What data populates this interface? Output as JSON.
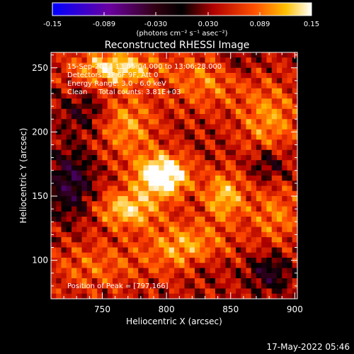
{
  "chart_data": {
    "type": "heatmap",
    "title": "Reconstructed RHESSI Image",
    "xlabel": "Heliocentric X (arcsec)",
    "ylabel": "Heliocentric Y (arcsec)",
    "xlim": [
      710,
      902
    ],
    "ylim": [
      70,
      262
    ],
    "x_ticks": [
      750,
      800,
      850,
      900
    ],
    "y_ticks": [
      100,
      150,
      200,
      250
    ],
    "colorbar": {
      "range": [
        -0.15,
        0.15
      ],
      "ticks": [
        "-0.15",
        "-0.089",
        "-0.030",
        "0.030",
        "0.089",
        "0.15"
      ],
      "unit_label": "(photons cm⁻² s⁻¹ asec⁻²)"
    },
    "annotations": [
      "15-Sep-2014 13:05:04.000 to 13:06:28.000",
      "Detectors: 3F 6F 9F, Att 0",
      "Energy Range: 3.0 - 6.0 keV",
      "Clean     Total counts: 3.81E+03"
    ],
    "peak": {
      "label": "Position of Peak = [797,166]",
      "x": 797,
      "y": 166
    },
    "grid": false,
    "hotspots": [
      {
        "x": 797,
        "y": 166,
        "amp": 0.15,
        "sx": 14,
        "sy": 11
      },
      {
        "x": 770,
        "y": 140,
        "amp": 0.09,
        "sx": 16,
        "sy": 10
      },
      {
        "x": 845,
        "y": 150,
        "amp": 0.08,
        "sx": 11,
        "sy": 13
      },
      {
        "x": 760,
        "y": 250,
        "amp": 0.1,
        "sx": 22,
        "sy": 9
      },
      {
        "x": 770,
        "y": 205,
        "amp": 0.06,
        "sx": 15,
        "sy": 18
      },
      {
        "x": 880,
        "y": 210,
        "amp": 0.06,
        "sx": 16,
        "sy": 20
      },
      {
        "x": 885,
        "y": 135,
        "amp": 0.05,
        "sx": 15,
        "sy": 16
      },
      {
        "x": 815,
        "y": 110,
        "amp": 0.07,
        "sx": 22,
        "sy": 14
      },
      {
        "x": 745,
        "y": 95,
        "amp": 0.04,
        "sx": 25,
        "sy": 14
      },
      {
        "x": 830,
        "y": 240,
        "amp": 0.05,
        "sx": 20,
        "sy": 16
      }
    ],
    "coldspots": [
      {
        "x": 725,
        "y": 160,
        "amp": -0.07,
        "sx": 12,
        "sy": 18
      },
      {
        "x": 880,
        "y": 175,
        "amp": -0.05,
        "sx": 10,
        "sy": 9
      },
      {
        "x": 880,
        "y": 90,
        "amp": -0.06,
        "sx": 11,
        "sy": 10
      },
      {
        "x": 735,
        "y": 215,
        "amp": -0.04,
        "sx": 12,
        "sy": 10
      },
      {
        "x": 830,
        "y": 95,
        "amp": -0.03,
        "sx": 12,
        "sy": 8
      },
      {
        "x": 855,
        "y": 255,
        "amp": -0.03,
        "sx": 12,
        "sy": 8
      }
    ]
  },
  "footer_timestamp": "17-May-2022 05:46"
}
